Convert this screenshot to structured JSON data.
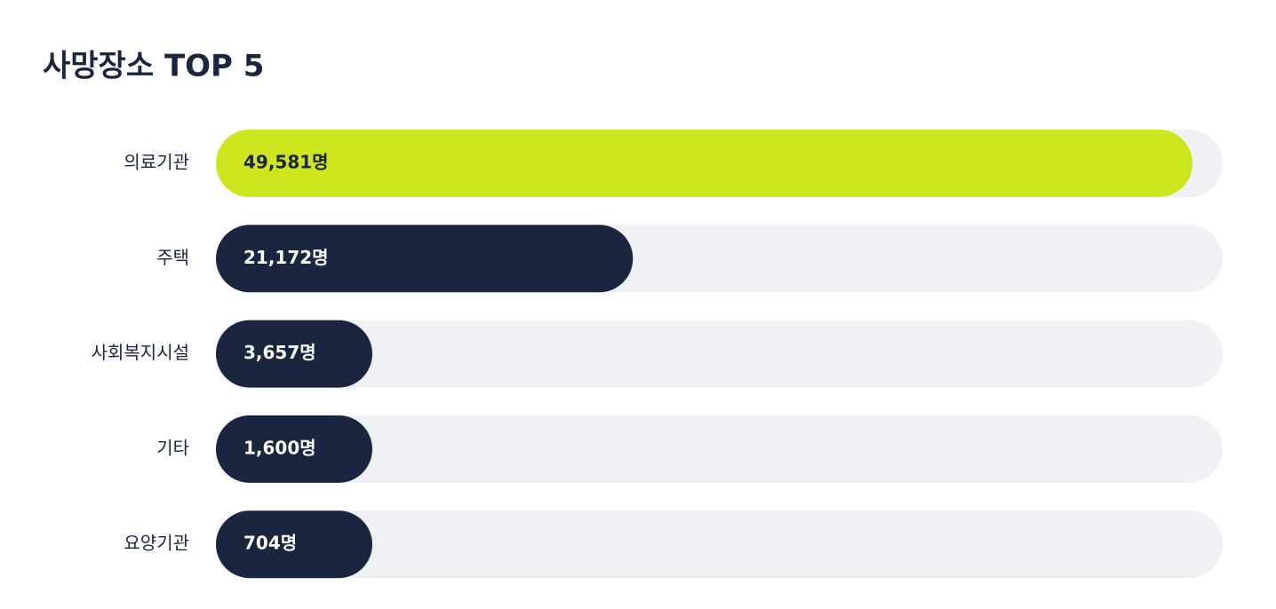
{
  "chart_data": {
    "type": "bar",
    "orientation": "horizontal",
    "title": "사망장소 TOP 5",
    "categories": [
      "의료기관",
      "주택",
      "사회복지시설",
      "기타",
      "요양기관"
    ],
    "values": [
      49581,
      21172,
      3657,
      1600,
      704
    ],
    "value_labels": [
      "49,581명",
      "21,172명",
      "3,657명",
      "1,600명",
      "704명"
    ],
    "colors": [
      "#cde61e",
      "#1a2540",
      "#1a2540",
      "#1a2540",
      "#1a2540"
    ],
    "track_color": "#f0f1f4"
  }
}
